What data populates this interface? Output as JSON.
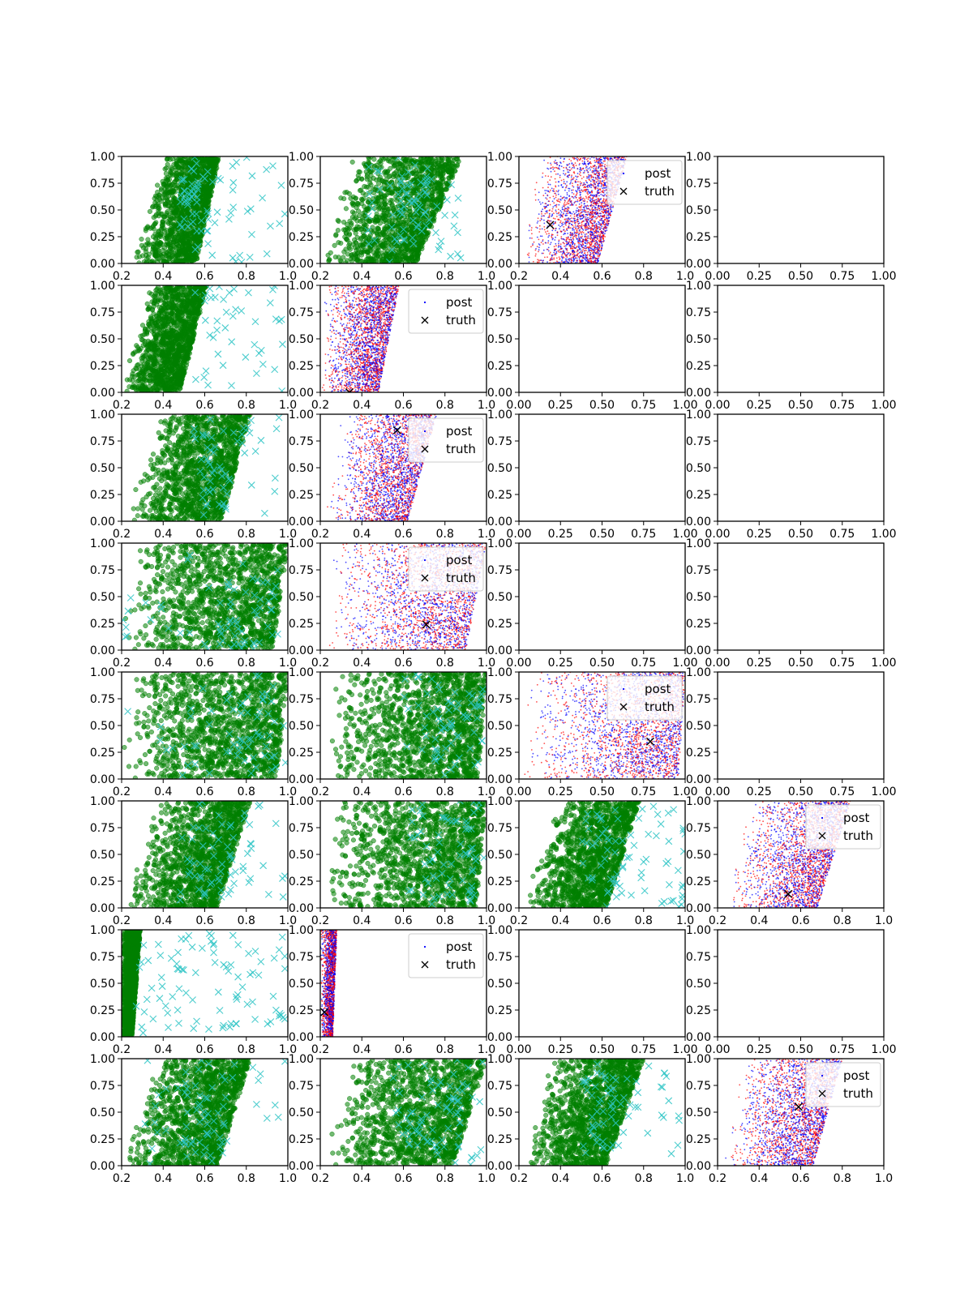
{
  "colors": {
    "samples": "#008000",
    "truth_points": "#2ec4c6",
    "post_a": "#0000ff",
    "post_b": "#ff0000",
    "truth_marker": "#000000"
  },
  "legend": {
    "post_label": "post",
    "truth_label": "truth"
  },
  "chart_data": {
    "type": "scatter",
    "grid": false,
    "layout": {
      "rows": 8,
      "cols": 4
    },
    "tick_sets": {
      "x_param": [
        "0.2",
        "0.4",
        "0.6",
        "0.8",
        "1.0"
      ],
      "x_unit": [
        "0.00",
        "0.25",
        "0.50",
        "0.75",
        "1.00"
      ],
      "y_unit": [
        "0.00",
        "0.25",
        "0.50",
        "0.75",
        "1.00"
      ]
    },
    "panels": [
      {
        "row": 0,
        "col": 0,
        "kind": "samples",
        "xlim": [
          0.2,
          1.0
        ],
        "ylim": [
          0,
          1
        ],
        "left": [
          0.25,
          0.41
        ],
        "right": [
          0.56,
          0.67
        ],
        "clusters": [
          {
            "xr": [
              0.48,
              0.62
            ],
            "yr": [
              0.3,
              0.95
            ],
            "n": 40
          }
        ],
        "truth_n": 45,
        "truth_x": [
          0.45,
          1.0
        ]
      },
      {
        "row": 0,
        "col": 1,
        "kind": "samples",
        "xlim": [
          0.2,
          1.0
        ],
        "ylim": [
          0,
          1
        ],
        "left": [
          0.22,
          0.33
        ],
        "right": [
          0.66,
          0.88
        ],
        "clusters": [
          {
            "xr": [
              0.55,
              0.72
            ],
            "yr": [
              0.2,
              0.9
            ],
            "n": 40
          }
        ],
        "truth_n": 45,
        "truth_x": [
          0.42,
          0.88
        ]
      },
      {
        "row": 0,
        "col": 2,
        "kind": "posterior",
        "xlim": [
          0.2,
          1.0
        ],
        "ylim": [
          0,
          1
        ],
        "left": [
          0.2,
          0.3
        ],
        "right": [
          0.58,
          0.72
        ],
        "truth": [
          0.35,
          0.36
        ],
        "legend": "top-right"
      },
      {
        "row": 0,
        "col": 3,
        "kind": "empty",
        "xlim": [
          0,
          1
        ],
        "ylim": [
          0,
          1
        ]
      },
      {
        "row": 1,
        "col": 0,
        "kind": "samples",
        "xlim": [
          0.2,
          1.0
        ],
        "ylim": [
          0,
          1
        ],
        "left": [
          0.2,
          0.33
        ],
        "right": [
          0.48,
          0.61
        ],
        "clusters": [],
        "truth_n": 45,
        "truth_x": [
          0.55,
          1.0
        ]
      },
      {
        "row": 1,
        "col": 1,
        "kind": "posterior",
        "xlim": [
          0.2,
          1.0
        ],
        "ylim": [
          0,
          1
        ],
        "left": [
          0.2,
          0.22
        ],
        "right": [
          0.48,
          0.58
        ],
        "truth": [
          0.34,
          0.0
        ],
        "legend": "top-right"
      },
      {
        "row": 1,
        "col": 2,
        "kind": "empty",
        "xlim": [
          0,
          1
        ],
        "ylim": [
          0,
          1
        ]
      },
      {
        "row": 1,
        "col": 3,
        "kind": "empty",
        "xlim": [
          0,
          1
        ],
        "ylim": [
          0,
          1
        ]
      },
      {
        "row": 2,
        "col": 0,
        "kind": "samples",
        "xlim": [
          0.2,
          1.0
        ],
        "ylim": [
          0,
          1
        ],
        "left": [
          0.22,
          0.38
        ],
        "right": [
          0.68,
          0.82
        ],
        "clusters": [
          {
            "xr": [
              0.55,
              0.72
            ],
            "yr": [
              0.1,
              0.85
            ],
            "n": 30
          }
        ],
        "truth_n": 30,
        "truth_x": [
          0.5,
          1.0
        ]
      },
      {
        "row": 2,
        "col": 1,
        "kind": "posterior",
        "xlim": [
          0.2,
          1.0
        ],
        "ylim": [
          0,
          1
        ],
        "left": [
          0.22,
          0.3
        ],
        "right": [
          0.62,
          0.76
        ],
        "truth": [
          0.57,
          0.85
        ],
        "legend": "top-right"
      },
      {
        "row": 2,
        "col": 2,
        "kind": "empty",
        "xlim": [
          0,
          1
        ],
        "ylim": [
          0,
          1
        ]
      },
      {
        "row": 2,
        "col": 3,
        "kind": "empty",
        "xlim": [
          0,
          1
        ],
        "ylim": [
          0,
          1
        ]
      },
      {
        "row": 3,
        "col": 0,
        "kind": "samples",
        "xlim": [
          0.2,
          1.0
        ],
        "ylim": [
          0,
          1
        ],
        "left": [
          0.2,
          0.26
        ],
        "right": [
          0.93,
          1.0
        ],
        "clusters": [
          {
            "xr": [
              0.65,
              0.95
            ],
            "yr": [
              0.0,
              0.6
            ],
            "n": 35
          }
        ],
        "truth_n": 35,
        "truth_x": [
          0.2,
          1.0
        ]
      },
      {
        "row": 3,
        "col": 1,
        "kind": "posterior",
        "xlim": [
          0.2,
          1.0
        ],
        "ylim": [
          0,
          1
        ],
        "left": [
          0.22,
          0.26
        ],
        "right": [
          0.9,
          1.0
        ],
        "truth": [
          0.71,
          0.24
        ],
        "legend": "top-right"
      },
      {
        "row": 3,
        "col": 2,
        "kind": "empty",
        "xlim": [
          0,
          1
        ],
        "ylim": [
          0,
          1
        ]
      },
      {
        "row": 3,
        "col": 3,
        "kind": "empty",
        "xlim": [
          0,
          1
        ],
        "ylim": [
          0,
          1
        ]
      },
      {
        "row": 4,
        "col": 0,
        "kind": "samples",
        "xlim": [
          0.2,
          1.0
        ],
        "ylim": [
          0,
          1
        ],
        "left": [
          0.2,
          0.24
        ],
        "right": [
          0.95,
          1.0
        ],
        "clusters": [
          {
            "xr": [
              0.7,
              0.98
            ],
            "yr": [
              0.1,
              0.9
            ],
            "n": 35
          }
        ],
        "truth_n": 30,
        "truth_x": [
          0.2,
          1.0
        ]
      },
      {
        "row": 4,
        "col": 1,
        "kind": "samples",
        "xlim": [
          0.2,
          1.0
        ],
        "ylim": [
          0,
          1
        ],
        "left": [
          0.22,
          0.28
        ],
        "right": [
          0.96,
          1.0
        ],
        "clusters": [
          {
            "xr": [
              0.7,
              0.98
            ],
            "yr": [
              0.1,
              0.9
            ],
            "n": 40
          }
        ],
        "truth_n": 30,
        "truth_x": [
          0.6,
          1.0
        ]
      },
      {
        "row": 4,
        "col": 2,
        "kind": "posterior",
        "xlim": [
          0,
          1
        ],
        "ylim": [
          0,
          1
        ],
        "left": [
          0.0,
          0.05
        ],
        "right": [
          0.96,
          1.0
        ],
        "truth": [
          0.79,
          0.35
        ],
        "legend": "top-right"
      },
      {
        "row": 4,
        "col": 3,
        "kind": "empty",
        "xlim": [
          0,
          1
        ],
        "ylim": [
          0,
          1
        ]
      },
      {
        "row": 5,
        "col": 0,
        "kind": "samples",
        "xlim": [
          0.2,
          1.0
        ],
        "ylim": [
          0,
          1
        ],
        "left": [
          0.2,
          0.38
        ],
        "right": [
          0.66,
          0.82
        ],
        "clusters": [
          {
            "xr": [
              0.5,
              0.75
            ],
            "yr": [
              0.1,
              0.9
            ],
            "n": 35
          }
        ],
        "truth_n": 35,
        "truth_x": [
          0.45,
          1.0
        ]
      },
      {
        "row": 5,
        "col": 1,
        "kind": "samples",
        "xlim": [
          0.2,
          1.0
        ],
        "ylim": [
          0,
          1
        ],
        "left": [
          0.22,
          0.28
        ],
        "right": [
          0.95,
          1.0
        ],
        "clusters": [
          {
            "xr": [
              0.68,
              0.95
            ],
            "yr": [
              0.1,
              0.9
            ],
            "n": 40
          }
        ],
        "truth_n": 30,
        "truth_x": [
          0.6,
          1.0
        ]
      },
      {
        "row": 5,
        "col": 2,
        "kind": "samples",
        "xlim": [
          0.2,
          1.0
        ],
        "ylim": [
          0,
          1
        ],
        "left": [
          0.22,
          0.38
        ],
        "right": [
          0.62,
          0.78
        ],
        "clusters": [
          {
            "xr": [
              0.5,
              0.7
            ],
            "yr": [
              0.2,
              0.9
            ],
            "n": 30
          }
        ],
        "truth_n": 50,
        "truth_x": [
          0.62,
          1.0
        ]
      },
      {
        "row": 5,
        "col": 3,
        "kind": "posterior",
        "xlim": [
          0.2,
          1.0
        ],
        "ylim": [
          0,
          1
        ],
        "left": [
          0.22,
          0.36
        ],
        "right": [
          0.68,
          0.84
        ],
        "truth": [
          0.54,
          0.13
        ],
        "legend": "top-right"
      },
      {
        "row": 6,
        "col": 0,
        "kind": "samples",
        "xlim": [
          0.2,
          1.0
        ],
        "ylim": [
          0,
          1
        ],
        "left": [
          0.2,
          0.2
        ],
        "right": [
          0.25,
          0.29
        ],
        "clusters": [],
        "truth_n": 90,
        "truth_x": [
          0.27,
          1.0
        ]
      },
      {
        "row": 6,
        "col": 1,
        "kind": "posterior_narrow",
        "xlim": [
          0.2,
          1.0
        ],
        "ylim": [
          0,
          1
        ],
        "left": [
          0.2,
          0.2
        ],
        "right": [
          0.26,
          0.28
        ],
        "truth": [
          0.22,
          0.23
        ],
        "legend": "top-right"
      },
      {
        "row": 6,
        "col": 2,
        "kind": "empty",
        "xlim": [
          0,
          1
        ],
        "ylim": [
          0,
          1
        ]
      },
      {
        "row": 6,
        "col": 3,
        "kind": "empty",
        "xlim": [
          0,
          1
        ],
        "ylim": [
          0,
          1
        ]
      },
      {
        "row": 7,
        "col": 0,
        "kind": "samples",
        "xlim": [
          0.2,
          1.0
        ],
        "ylim": [
          0,
          1
        ],
        "left": [
          0.2,
          0.36
        ],
        "right": [
          0.66,
          0.82
        ],
        "clusters": [
          {
            "xr": [
              0.5,
              0.72
            ],
            "yr": [
              0.1,
              0.9
            ],
            "n": 35
          }
        ],
        "truth_n": 40,
        "truth_x": [
          0.3,
          1.0
        ]
      },
      {
        "row": 7,
        "col": 1,
        "kind": "samples",
        "xlim": [
          0.2,
          1.0
        ],
        "ylim": [
          0,
          1
        ],
        "left": [
          0.22,
          0.34
        ],
        "right": [
          0.84,
          1.0
        ],
        "clusters": [
          {
            "xr": [
              0.62,
              0.9
            ],
            "yr": [
              0.1,
              0.9
            ],
            "n": 40
          }
        ],
        "truth_n": 40,
        "truth_x": [
          0.55,
          1.0
        ]
      },
      {
        "row": 7,
        "col": 2,
        "kind": "samples",
        "xlim": [
          0.2,
          1.0
        ],
        "ylim": [
          0,
          1
        ],
        "left": [
          0.22,
          0.36
        ],
        "right": [
          0.62,
          0.8
        ],
        "clusters": [
          {
            "xr": [
              0.5,
              0.74
            ],
            "yr": [
              0.1,
              0.9
            ],
            "n": 30
          }
        ],
        "truth_n": 40,
        "truth_x": [
          0.55,
          1.0
        ]
      },
      {
        "row": 7,
        "col": 3,
        "kind": "posterior",
        "xlim": [
          0.2,
          1.0
        ],
        "ylim": [
          0,
          1
        ],
        "left": [
          0.22,
          0.32
        ],
        "right": [
          0.66,
          0.8
        ],
        "truth": [
          0.59,
          0.55
        ],
        "legend": "top-right"
      }
    ]
  }
}
